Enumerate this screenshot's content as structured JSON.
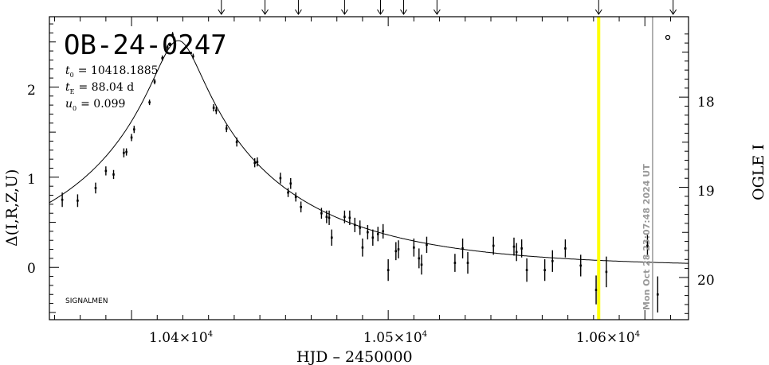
{
  "chart_data": {
    "type": "scatter",
    "title": "OB-24-0247",
    "parameters": [
      {
        "sym": "t",
        "sub": "0",
        "value": "= 10418.1885"
      },
      {
        "sym": "t",
        "sub": "E",
        "value": "= 88.04 d"
      },
      {
        "sym": "u",
        "sub": "0",
        "value": "= 0.099"
      }
    ],
    "xlabel": "HJD – 2450000",
    "ylabel_left": "Δ(I,R,Z,U)",
    "ylabel_right": "OGLE I",
    "credit": "SIGNALMEN",
    "date_label": "Mon Oct 28 23:07:48 2024 UT",
    "x_ticks": [
      {
        "v": 10400,
        "m": "1.04×10",
        "e": "4"
      },
      {
        "v": 10500,
        "m": "1.05×10",
        "e": "4"
      },
      {
        "v": 10600,
        "m": "1.06×10",
        "e": "4"
      }
    ],
    "y_left_ticks": [
      "0",
      "1",
      "2"
    ],
    "y_right_ticks": [
      "18",
      "19",
      "20"
    ],
    "xlim": [
      10368,
      10617
    ],
    "ylim": [
      -0.58,
      2.78
    ],
    "t0": 10418.1885,
    "tE": 88.04,
    "u0": 0.099,
    "current_date": 10603,
    "yellow_line": 10582,
    "arrows_x": [
      10435,
      10452,
      10465,
      10483,
      10497,
      10506,
      10519,
      10582,
      10611
    ],
    "points": [
      {
        "x": 10373,
        "y": 0.75,
        "e": 0.08
      },
      {
        "x": 10379,
        "y": 0.74,
        "e": 0.07
      },
      {
        "x": 10386,
        "y": 0.88,
        "e": 0.06
      },
      {
        "x": 10390,
        "y": 1.07,
        "e": 0.05
      },
      {
        "x": 10393,
        "y": 1.03,
        "e": 0.05
      },
      {
        "x": 10397,
        "y": 1.27,
        "e": 0.05
      },
      {
        "x": 10398,
        "y": 1.28,
        "e": 0.04
      },
      {
        "x": 10400,
        "y": 1.44,
        "e": 0.04
      },
      {
        "x": 10401,
        "y": 1.53,
        "e": 0.04
      },
      {
        "x": 10407,
        "y": 1.83,
        "e": 0.03
      },
      {
        "x": 10409,
        "y": 2.06,
        "e": 0.03
      },
      {
        "x": 10412,
        "y": 2.32,
        "e": 0.03
      },
      {
        "x": 10414,
        "y": 2.44,
        "e": 0.03
      },
      {
        "x": 10416,
        "y": 2.58,
        "e": 0.03
      },
      {
        "x": 10424,
        "y": 2.34,
        "e": 0.03
      },
      {
        "x": 10432,
        "y": 1.77,
        "e": 0.04
      },
      {
        "x": 10433,
        "y": 1.74,
        "e": 0.04
      },
      {
        "x": 10437,
        "y": 1.54,
        "e": 0.04
      },
      {
        "x": 10441,
        "y": 1.39,
        "e": 0.05
      },
      {
        "x": 10448,
        "y": 1.16,
        "e": 0.05
      },
      {
        "x": 10449,
        "y": 1.17,
        "e": 0.05
      },
      {
        "x": 10458,
        "y": 0.99,
        "e": 0.06
      },
      {
        "x": 10461,
        "y": 0.83,
        "e": 0.05
      },
      {
        "x": 10462,
        "y": 0.93,
        "e": 0.06
      },
      {
        "x": 10464,
        "y": 0.78,
        "e": 0.05
      },
      {
        "x": 10466,
        "y": 0.67,
        "e": 0.06
      },
      {
        "x": 10474,
        "y": 0.6,
        "e": 0.06
      },
      {
        "x": 10476,
        "y": 0.56,
        "e": 0.07
      },
      {
        "x": 10477,
        "y": 0.55,
        "e": 0.08
      },
      {
        "x": 10478,
        "y": 0.33,
        "e": 0.09
      },
      {
        "x": 10483,
        "y": 0.56,
        "e": 0.07
      },
      {
        "x": 10485,
        "y": 0.55,
        "e": 0.08
      },
      {
        "x": 10487,
        "y": 0.47,
        "e": 0.08
      },
      {
        "x": 10489,
        "y": 0.44,
        "e": 0.08
      },
      {
        "x": 10490,
        "y": 0.22,
        "e": 0.1
      },
      {
        "x": 10492,
        "y": 0.39,
        "e": 0.08
      },
      {
        "x": 10494,
        "y": 0.33,
        "e": 0.09
      },
      {
        "x": 10496,
        "y": 0.37,
        "e": 0.08
      },
      {
        "x": 10498,
        "y": 0.4,
        "e": 0.08
      },
      {
        "x": 10500,
        "y": -0.03,
        "e": 0.12
      },
      {
        "x": 10503,
        "y": 0.18,
        "e": 0.1
      },
      {
        "x": 10504,
        "y": 0.2,
        "e": 0.1
      },
      {
        "x": 10510,
        "y": 0.22,
        "e": 0.1
      },
      {
        "x": 10512,
        "y": 0.1,
        "e": 0.11
      },
      {
        "x": 10513,
        "y": 0.03,
        "e": 0.11
      },
      {
        "x": 10515,
        "y": 0.25,
        "e": 0.09
      },
      {
        "x": 10526,
        "y": 0.05,
        "e": 0.1
      },
      {
        "x": 10529,
        "y": 0.21,
        "e": 0.11
      },
      {
        "x": 10531,
        "y": 0.05,
        "e": 0.12
      },
      {
        "x": 10541,
        "y": 0.24,
        "e": 0.1
      },
      {
        "x": 10549,
        "y": 0.23,
        "e": 0.1
      },
      {
        "x": 10550,
        "y": 0.17,
        "e": 0.1
      },
      {
        "x": 10552,
        "y": 0.21,
        "e": 0.1
      },
      {
        "x": 10554,
        "y": -0.03,
        "e": 0.13
      },
      {
        "x": 10561,
        "y": -0.03,
        "e": 0.12
      },
      {
        "x": 10564,
        "y": 0.07,
        "e": 0.12
      },
      {
        "x": 10569,
        "y": 0.21,
        "e": 0.1
      },
      {
        "x": 10575,
        "y": 0.02,
        "e": 0.12
      },
      {
        "x": 10581,
        "y": -0.25,
        "e": 0.16
      },
      {
        "x": 10585,
        "y": -0.05,
        "e": 0.17
      },
      {
        "x": 10601,
        "y": 0.24,
        "e": 0.12
      },
      {
        "x": 10605,
        "y": -0.3,
        "e": 0.2
      }
    ],
    "grid": false
  }
}
